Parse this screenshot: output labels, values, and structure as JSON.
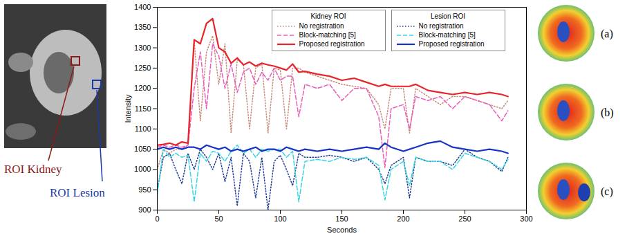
{
  "chart_data": {
    "type": "line",
    "xlabel": "Seconds",
    "ylabel": "Intensity",
    "x": [
      0,
      5,
      10,
      15,
      20,
      25,
      30,
      35,
      40,
      45,
      50,
      55,
      60,
      65,
      70,
      75,
      80,
      85,
      90,
      95,
      100,
      105,
      110,
      115,
      120,
      130,
      140,
      150,
      160,
      170,
      180,
      185,
      190,
      200,
      205,
      210,
      220,
      230,
      240,
      250,
      260,
      270,
      280,
      285
    ],
    "xlim": [
      0,
      300
    ],
    "xticks": [
      0,
      50,
      100,
      150,
      200,
      250,
      300
    ],
    "ylim": [
      900,
      1400
    ],
    "yticks": [
      900,
      950,
      1000,
      1050,
      1100,
      1150,
      1200,
      1250,
      1300,
      1350,
      1400
    ],
    "grid": false,
    "legend": "top",
    "series": [
      {
        "name": "No registration",
        "group": "Kidney ROI",
        "color": "#c98a7c",
        "line_style": "dotted",
        "values": [
          1000,
          1050,
          1040,
          1050,
          1050,
          1060,
          1320,
          1120,
          1290,
          1330,
          1210,
          1310,
          1090,
          1270,
          1260,
          1100,
          1250,
          1260,
          1090,
          1250,
          1245,
          1100,
          1250,
          1250,
          1240,
          1230,
          1220,
          1210,
          1205,
          1200,
          1160,
          1100,
          1200,
          1200,
          1090,
          1200,
          1180,
          1160,
          1180,
          1180,
          1170,
          1160,
          1150,
          1170
        ]
      },
      {
        "name": "Block-matching [5]",
        "group": "Kidney ROI",
        "color": "#e95cb9",
        "line_style": "dashed",
        "values": [
          1055,
          1060,
          1055,
          1060,
          1055,
          1060,
          1200,
          1290,
          1150,
          1310,
          1280,
          1200,
          1260,
          1190,
          1240,
          1250,
          1210,
          1240,
          1220,
          1250,
          1220,
          1230,
          1230,
          1130,
          1210,
          1200,
          1210,
          1170,
          1200,
          1200,
          1130,
          1005,
          1150,
          1160,
          1100,
          1180,
          1170,
          1180,
          1150,
          1180,
          1170,
          1160,
          1120,
          1145
        ]
      },
      {
        "name": "Proposed registration",
        "group": "Kidney ROI",
        "color": "#e8242a",
        "line_style": "solid",
        "values": [
          1060,
          1062,
          1065,
          1060,
          1068,
          1065,
          1320,
          1310,
          1360,
          1372,
          1300,
          1290,
          1262,
          1275,
          1258,
          1265,
          1255,
          1262,
          1258,
          1255,
          1250,
          1245,
          1260,
          1240,
          1242,
          1235,
          1230,
          1220,
          1225,
          1215,
          1205,
          1210,
          1205,
          1205,
          1205,
          1210,
          1195,
          1190,
          1185,
          1190,
          1185,
          1190,
          1185,
          1180
        ]
      },
      {
        "name": "No registration",
        "group": "Lesion ROI",
        "color": "#1f3c94",
        "line_style": "dotted",
        "values": [
          950,
          1030,
          1040,
          1000,
          965,
          1040,
          1000,
          1050,
          1030,
          1000,
          1040,
          970,
          1030,
          910,
          1040,
          1020,
          930,
          1030,
          900,
          1020,
          1035,
          1000,
          960,
          1040,
          1030,
          1030,
          1035,
          1030,
          1020,
          1030,
          1000,
          965,
          1010,
          1030,
          930,
          1030,
          1020,
          1020,
          1010,
          1050,
          1030,
          1020,
          995,
          1030
        ]
      },
      {
        "name": "Block-matching [5]",
        "group": "Lesion ROI",
        "color": "#33d6e6",
        "line_style": "dashed",
        "values": [
          940,
          1050,
          1030,
          1040,
          1030,
          1035,
          920,
          1040,
          1020,
          1045,
          1040,
          1020,
          1045,
          1060,
          1040,
          1050,
          1030,
          1050,
          1045,
          1050,
          1050,
          1030,
          1045,
          920,
          1020,
          1025,
          1020,
          1030,
          1025,
          1030,
          1010,
          925,
          1000,
          1020,
          960,
          1030,
          1020,
          1020,
          1000,
          1040,
          1030,
          1020,
          1000,
          1025
        ]
      },
      {
        "name": "Proposed registration",
        "group": "Lesion ROI",
        "color": "#1633c6",
        "line_style": "solid",
        "values": [
          1050,
          1055,
          1050,
          1055,
          1050,
          1055,
          1055,
          1050,
          1060,
          1055,
          1050,
          1055,
          1045,
          1050,
          1045,
          1050,
          1055,
          1045,
          1050,
          1050,
          1045,
          1055,
          1050,
          1045,
          1050,
          1045,
          1050,
          1045,
          1050,
          1055,
          1050,
          1065,
          1055,
          1045,
          1050,
          1055,
          1065,
          1070,
          1055,
          1050,
          1045,
          1050,
          1045,
          1040
        ]
      }
    ]
  },
  "figure_labels": {
    "roi_labels": [
      {
        "text": "ROI Kidney",
        "color": "#8b1a1a"
      },
      {
        "text": "ROI Lesion",
        "color": "#1a3aa8"
      }
    ],
    "panel_labels": [
      "(a)",
      "(b)",
      "(c)"
    ]
  }
}
